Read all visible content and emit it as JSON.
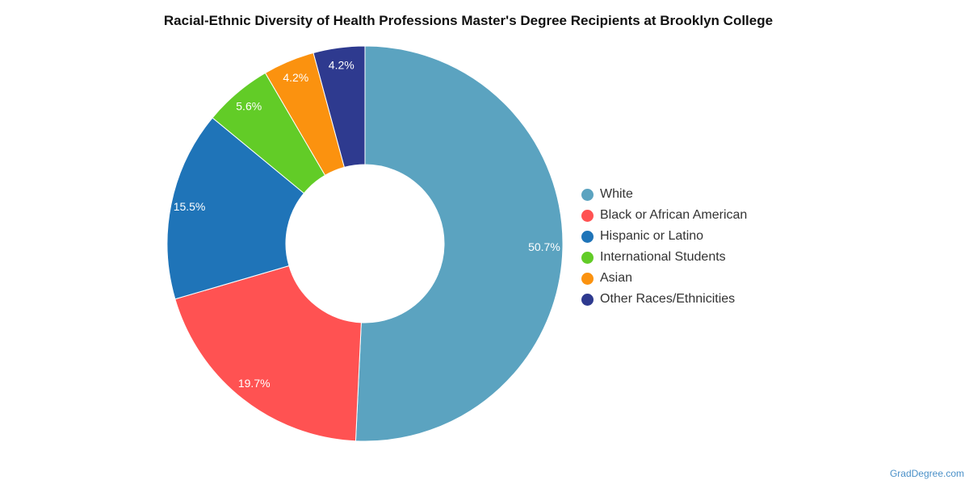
{
  "chart_data": {
    "type": "pie",
    "title": "Racial-Ethnic Diversity of Health Professions Master's Degree Recipients at Brooklyn College",
    "legend_position": "right",
    "donut": true,
    "slices": [
      {
        "label": "White",
        "value": 50.7,
        "display": "50.7%",
        "color": "#5ba3c0"
      },
      {
        "label": "Black or African American",
        "value": 19.7,
        "display": "19.7%",
        "color": "#ff5252"
      },
      {
        "label": "Hispanic or Latino",
        "value": 15.5,
        "display": "15.5%",
        "color": "#1f74b8"
      },
      {
        "label": "International Students",
        "value": 5.6,
        "display": "5.6%",
        "color": "#62cc27"
      },
      {
        "label": "Asian",
        "value": 4.2,
        "display": "4.2%",
        "color": "#fb920f"
      },
      {
        "label": "Other Races/Ethnicities",
        "value": 4.2,
        "display": "4.2%",
        "color": "#2e3a8f"
      }
    ]
  },
  "footer": {
    "credit": "GradDegree.com"
  }
}
